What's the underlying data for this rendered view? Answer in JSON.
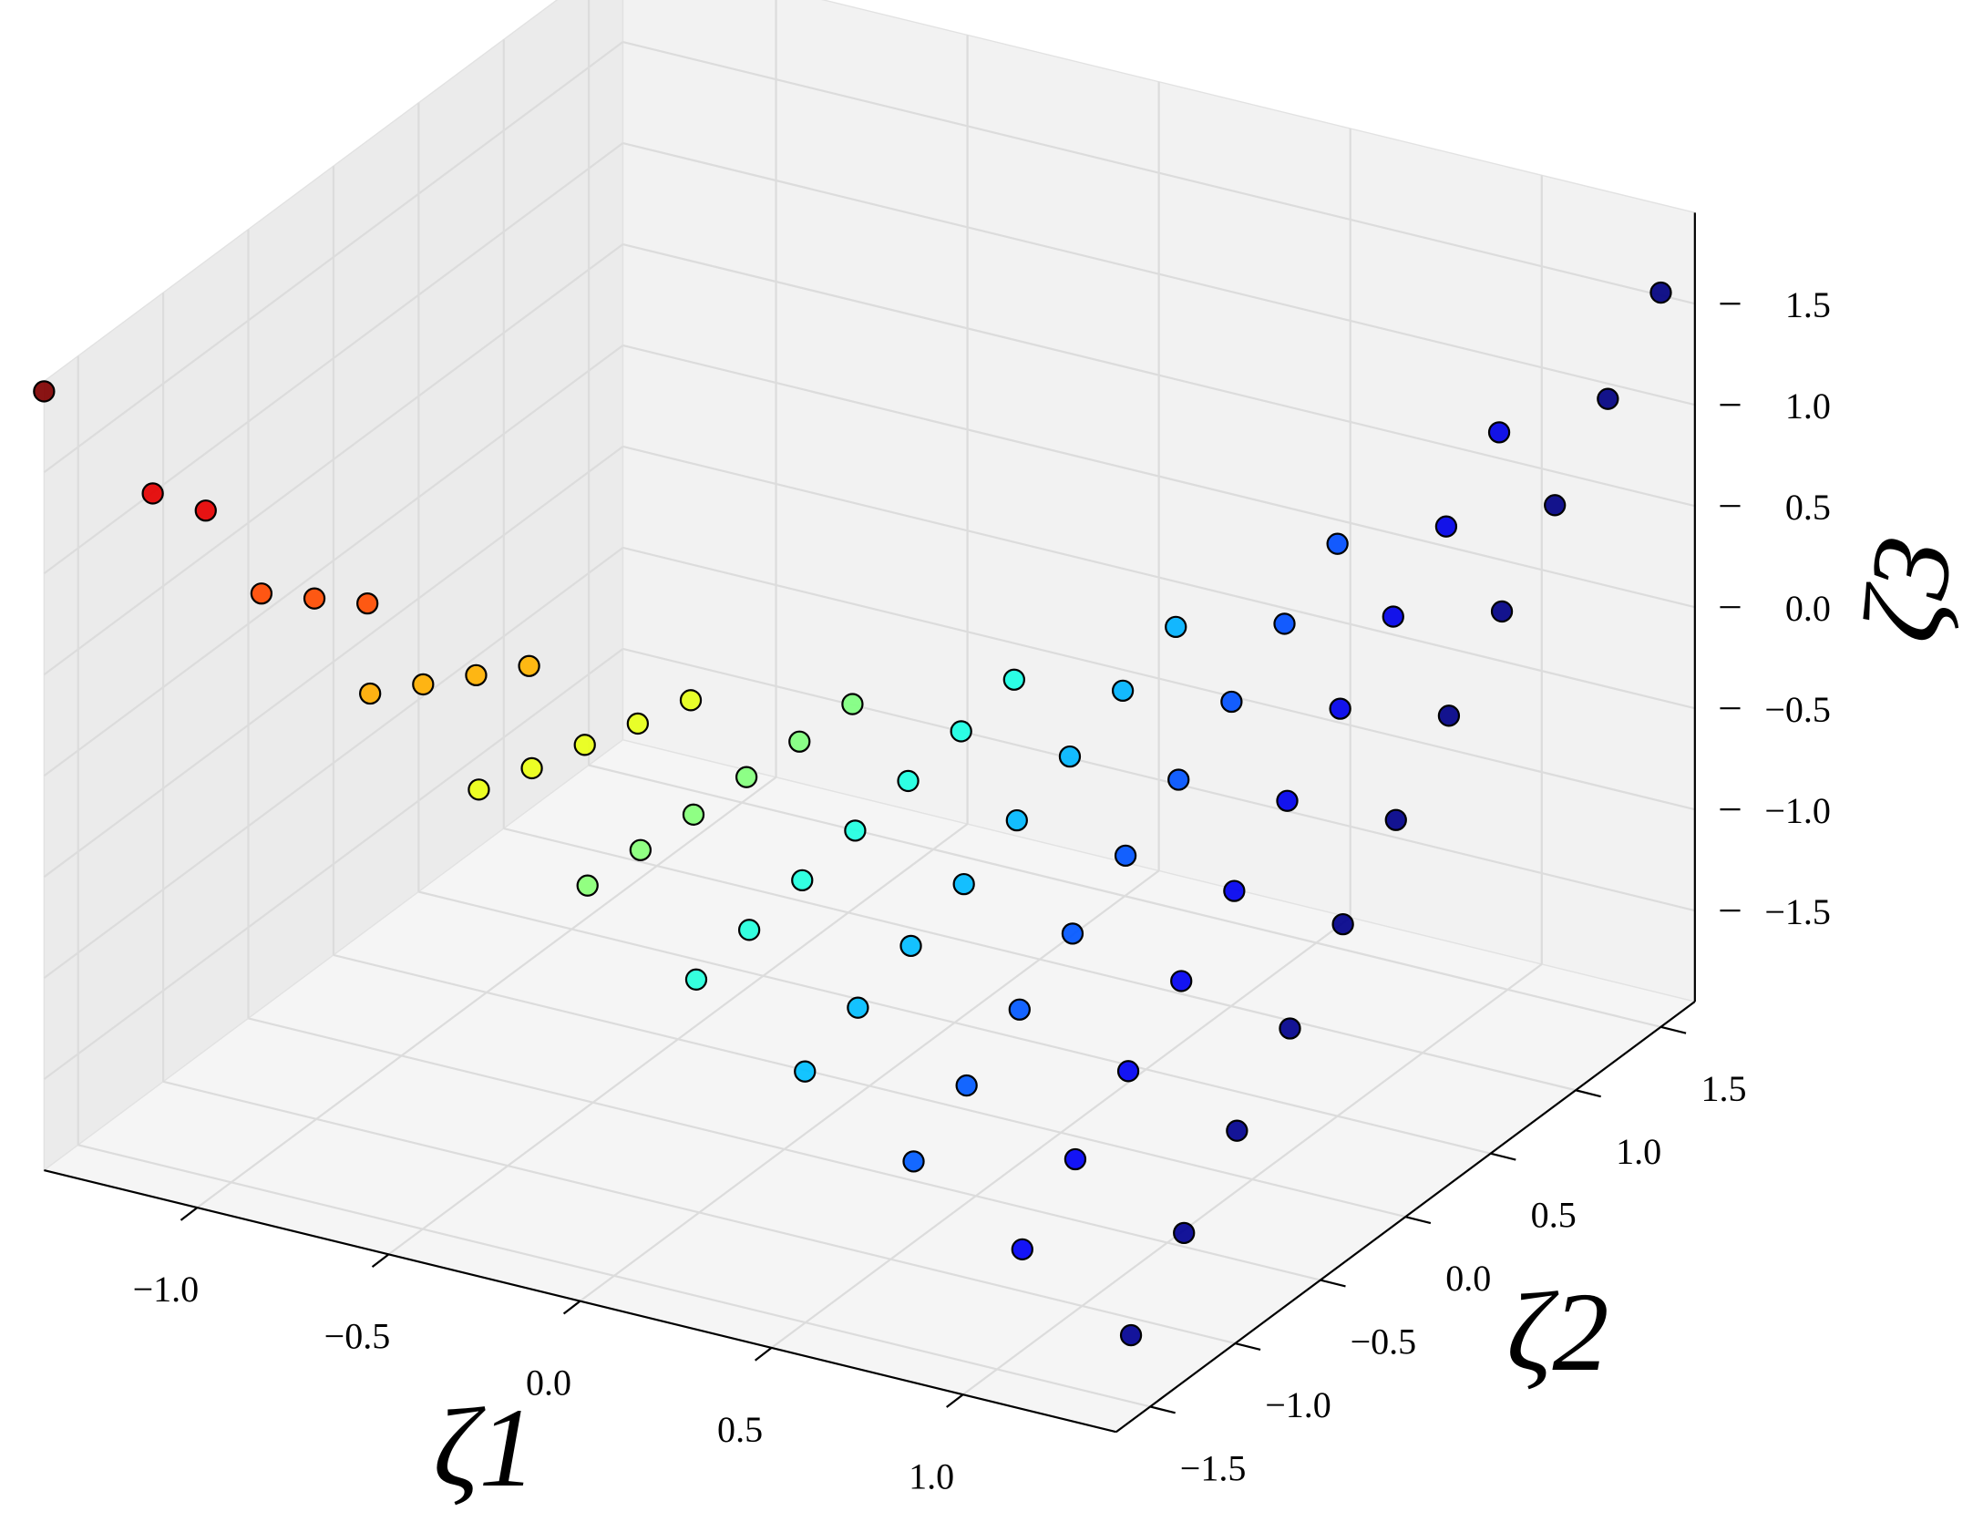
{
  "chart_data": {
    "type": "scatter3d",
    "x_label": "ζ1",
    "y_label": "ζ2",
    "z_label": "ζ3",
    "x": [
      -1.4,
      -1.125,
      -0.85,
      -0.575,
      -0.3,
      -0.025,
      0.25,
      0.525,
      0.8,
      1.075,
      1.35,
      -1.12,
      -0.845,
      -0.57,
      -0.295,
      -0.02,
      0.255,
      0.53,
      0.805,
      1.08,
      1.355,
      -0.84,
      -0.565,
      -0.29,
      -0.015,
      0.26,
      0.535,
      0.81,
      1.085,
      1.36,
      -0.56,
      -0.285,
      -0.01,
      0.265,
      0.54,
      0.815,
      1.09,
      1.365,
      -0.28,
      -0.005,
      0.27,
      0.545,
      0.82,
      1.095,
      1.37,
      0,
      0.275,
      0.55,
      0.825,
      1.1,
      1.375,
      0.28,
      0.555,
      0.83,
      1.105,
      1.38,
      0.56,
      0.835,
      1.11,
      1.385,
      0.84,
      1.115,
      1.39,
      1.12,
      1.395,
      1.4
    ],
    "y": [
      -1.7,
      -1.68,
      -1.66,
      -1.64,
      -1.62,
      -1.6,
      -1.58,
      -1.56,
      -1.54,
      -1.52,
      -1.5,
      -1.38,
      -1.36,
      -1.34,
      -1.32,
      -1.3,
      -1.28,
      -1.26,
      -1.24,
      -1.22,
      -1.2,
      -1.06,
      -1.04,
      -1.02,
      -1,
      -0.98,
      -0.96,
      -0.94,
      -0.92,
      -0.9,
      -0.74,
      -0.72,
      -0.7,
      -0.68,
      -0.66,
      -0.64,
      -0.62,
      -0.6,
      -0.42,
      -0.4,
      -0.38,
      -0.36,
      -0.34,
      -0.32,
      -0.3,
      -0.1,
      -0.08,
      -0.06,
      -0.04,
      -0.02,
      0,
      0.22,
      0.24,
      0.26,
      0.28,
      0.3,
      0.54,
      0.56,
      0.58,
      0.6,
      0.86,
      0.88,
      0.9,
      1.18,
      1.2,
      1.5
    ],
    "z": [
      1.9,
      1.51,
      1.13,
      0.75,
      0.39,
      0.03,
      -0.32,
      -0.66,
      -0.99,
      -1.31,
      -1.62,
      1.24,
      0.92,
      0.61,
      0.31,
      0.02,
      -0.26,
      -0.53,
      -0.8,
      -1.05,
      -1.3,
      0.71,
      0.47,
      0.24,
      0.01,
      -0.2,
      -0.41,
      -0.61,
      -0.8,
      -0.98,
      0.33,
      0.16,
      0.01,
      -0.14,
      -0.29,
      -0.42,
      -0.54,
      -0.66,
      0.09,
      0,
      -0.08,
      -0.16,
      -0.22,
      -0.28,
      -0.33,
      0,
      -0.02,
      -0.03,
      -0.03,
      -0.02,
      0,
      0.05,
      0.11,
      0.17,
      0.25,
      0.33,
      0.24,
      0.37,
      0.52,
      0.66,
      0.58,
      0.78,
      1.0,
      1.06,
      1.34,
      1.68
    ],
    "colormap": "jet_r",
    "color_by": "x",
    "edgecolor": "#000000",
    "xlim": [
      -1.4,
      1.4
    ],
    "ylim": [
      -1.7,
      1.7
    ],
    "zlim": [
      -1.95,
      1.95
    ],
    "xticks": [
      {
        "value": -1,
        "label": "−1.0"
      },
      {
        "value": -0.5,
        "label": "−0.5"
      },
      {
        "value": 0,
        "label": "0.0"
      },
      0.5,
      {
        "value": 1,
        "label": "1.0"
      }
    ],
    "yticks": [
      {
        "value": -1.5,
        "label": "−1.5"
      },
      {
        "value": -1,
        "label": "−1.0"
      },
      {
        "value": -0.5,
        "label": "−0.5"
      },
      {
        "value": 0,
        "label": "0.0"
      },
      0.5,
      {
        "value": 1,
        "label": "1.0"
      },
      1.5
    ],
    "zticks": [
      {
        "value": -1.5,
        "label": "−1.5"
      },
      {
        "value": -1,
        "label": "−1.0"
      },
      {
        "value": -0.5,
        "label": "−0.5"
      },
      {
        "value": 0,
        "label": "0.0"
      },
      0.5,
      {
        "value": 1,
        "label": "1.0"
      },
      1.5
    ],
    "grid": true
  }
}
